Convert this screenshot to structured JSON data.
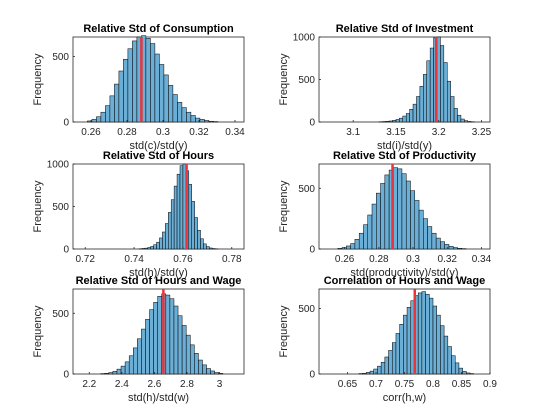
{
  "chart_data": [
    {
      "type": "bar",
      "title": "Relative Std of Consumption",
      "xlabel": "std(c)/std(y)",
      "ylabel": "Frequency",
      "xlim": [
        0.25,
        0.345
      ],
      "ylim": [
        0,
        650
      ],
      "xticks": [
        0.26,
        0.28,
        0.3,
        0.32,
        0.34
      ],
      "xtick_labels": [
        "0.26",
        "0.28",
        "0.3",
        "0.32",
        "0.34"
      ],
      "yticks": [
        0,
        500
      ],
      "ytick_labels": [
        "0",
        "500"
      ],
      "bins": {
        "start": 0.258,
        "width": 0.0025,
        "counts": [
          8,
          20,
          40,
          75,
          125,
          200,
          290,
          390,
          480,
          560,
          620,
          650,
          660,
          640,
          600,
          520,
          440,
          360,
          280,
          210,
          150,
          110,
          75,
          50,
          30,
          20,
          12,
          6,
          3
        ]
      },
      "marker": 0.288,
      "bar_color": "#6baed6",
      "marker_color": "#e8343a"
    },
    {
      "type": "bar",
      "title": "Relative Std of Investment",
      "xlabel": "std(i)/std(y)",
      "ylabel": "Frequency",
      "xlim": [
        3.06,
        3.26
      ],
      "ylim": [
        0,
        1000
      ],
      "xticks": [
        3.1,
        3.15,
        3.2,
        3.25
      ],
      "xtick_labels": [
        "3.1",
        "3.15",
        "3.2",
        "3.25"
      ],
      "yticks": [
        0,
        500,
        1000
      ],
      "ytick_labels": [
        "0",
        "500",
        "1000"
      ],
      "bins": {
        "start": 3.13,
        "width": 0.004,
        "counts": [
          3,
          5,
          8,
          12,
          20,
          30,
          45,
          70,
          100,
          150,
          210,
          300,
          420,
          560,
          720,
          870,
          990,
          1000,
          900,
          700,
          480,
          300,
          160,
          80,
          35,
          15,
          6,
          3
        ]
      },
      "marker": 3.197,
      "bar_color": "#6baed6",
      "marker_color": "#e8343a"
    },
    {
      "type": "bar",
      "title": "Relative Std of Hours",
      "xlabel": "std(h)/std(y)",
      "ylabel": "Frequency",
      "xlim": [
        0.715,
        0.785
      ],
      "ylim": [
        0,
        1000
      ],
      "xticks": [
        0.72,
        0.74,
        0.76,
        0.78
      ],
      "xtick_labels": [
        "0.72",
        "0.74",
        "0.76",
        "0.78"
      ],
      "yticks": [
        0,
        500,
        1000
      ],
      "ytick_labels": [
        "0",
        "500",
        "1000"
      ],
      "bins": {
        "start": 0.742,
        "width": 0.0012,
        "counts": [
          3,
          6,
          10,
          18,
          30,
          50,
          80,
          130,
          200,
          300,
          430,
          580,
          740,
          880,
          980,
          1000,
          920,
          760,
          560,
          370,
          220,
          120,
          60,
          28,
          12,
          5,
          2
        ]
      },
      "marker": 0.7615,
      "bar_color": "#6baed6",
      "marker_color": "#e8343a"
    },
    {
      "type": "bar",
      "title": "Relative Std of Productivity",
      "xlabel": "std(productivity)/std(y)",
      "ylabel": "Frequency",
      "xlim": [
        0.245,
        0.345
      ],
      "ylim": [
        0,
        700
      ],
      "xticks": [
        0.26,
        0.28,
        0.3,
        0.32,
        0.34
      ],
      "xtick_labels": [
        "0.26",
        "0.28",
        "0.3",
        "0.32",
        "0.34"
      ],
      "yticks": [
        0,
        500
      ],
      "ytick_labels": [
        "0",
        "500"
      ],
      "bins": {
        "start": 0.256,
        "width": 0.0025,
        "counts": [
          5,
          12,
          25,
          45,
          80,
          130,
          200,
          280,
          370,
          460,
          540,
          610,
          650,
          670,
          660,
          620,
          560,
          480,
          400,
          320,
          250,
          185,
          130,
          90,
          60,
          38,
          22,
          12,
          6,
          3
        ]
      },
      "marker": 0.288,
      "bar_color": "#6baed6",
      "marker_color": "#e8343a"
    },
    {
      "type": "bar",
      "title": "Relative Std of Hours and Wage",
      "xlabel": "std(h)/std(w)",
      "ylabel": "Frequency",
      "xlim": [
        2.1,
        3.15
      ],
      "ylim": [
        0,
        700
      ],
      "xticks": [
        2.2,
        2.4,
        2.6,
        2.8,
        3
      ],
      "xtick_labels": [
        "2.2",
        "2.4",
        "2.6",
        "2.8",
        "3"
      ],
      "yticks": [
        0,
        500
      ],
      "ytick_labels": [
        "0",
        "500"
      ],
      "bins": {
        "start": 2.27,
        "width": 0.025,
        "counts": [
          3,
          6,
          12,
          22,
          40,
          65,
          100,
          150,
          215,
          290,
          370,
          450,
          530,
          590,
          640,
          660,
          650,
          620,
          560,
          480,
          400,
          320,
          240,
          170,
          115,
          75,
          45,
          25,
          12,
          5
        ]
      },
      "marker": 2.655,
      "bar_color": "#6baed6",
      "marker_color": "#e8343a"
    },
    {
      "type": "bar",
      "title": "Correlation of Hours and Wage",
      "xlabel": "corr(h,w)",
      "ylabel": "Frequency",
      "xlim": [
        0.6,
        0.9
      ],
      "ylim": [
        0,
        650
      ],
      "xticks": [
        0.65,
        0.7,
        0.75,
        0.8,
        0.85,
        0.9
      ],
      "xtick_labels": [
        "0.65",
        "0.7",
        "0.75",
        "0.8",
        "0.85",
        "0.9"
      ],
      "yticks": [
        0,
        500
      ],
      "ytick_labels": [
        "0",
        "500"
      ],
      "bins": {
        "start": 0.67,
        "width": 0.0065,
        "counts": [
          3,
          6,
          12,
          22,
          38,
          60,
          90,
          130,
          180,
          240,
          310,
          380,
          450,
          510,
          560,
          600,
          620,
          630,
          610,
          580,
          520,
          450,
          370,
          290,
          210,
          140,
          85,
          45,
          20,
          8,
          3
        ]
      },
      "marker": 0.768,
      "bar_color": "#6baed6",
      "marker_color": "#e8343a"
    }
  ]
}
